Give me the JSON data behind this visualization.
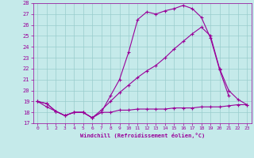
{
  "xlabel": "Windchill (Refroidissement éolien,°C)",
  "xlim": [
    -0.5,
    23.5
  ],
  "ylim": [
    17,
    28
  ],
  "xticks": [
    0,
    1,
    2,
    3,
    4,
    5,
    6,
    7,
    8,
    9,
    10,
    11,
    12,
    13,
    14,
    15,
    16,
    17,
    18,
    19,
    20,
    21,
    22,
    23
  ],
  "yticks": [
    17,
    18,
    19,
    20,
    21,
    22,
    23,
    24,
    25,
    26,
    27,
    28
  ],
  "background_color": "#c5eaea",
  "line_color": "#990099",
  "grid_color": "#99cccc",
  "series": [
    {
      "x": [
        0,
        1,
        2,
        3,
        4,
        5,
        6,
        7,
        8,
        9,
        10,
        11,
        12,
        13,
        14,
        15,
        16,
        17,
        18,
        19,
        20,
        21,
        22,
        23
      ],
      "y": [
        19.0,
        18.8,
        18.1,
        17.7,
        18.0,
        18.0,
        17.5,
        18.0,
        19.5,
        21.0,
        23.5,
        26.5,
        27.2,
        27.0,
        27.3,
        27.5,
        27.8,
        27.5,
        26.7,
        24.8,
        21.9,
        19.5,
        null,
        null
      ]
    },
    {
      "x": [
        0,
        1,
        2,
        3,
        4,
        5,
        6,
        7,
        8,
        9,
        10,
        11,
        12,
        13,
        14,
        15,
        16,
        17,
        18,
        19,
        20,
        21,
        22,
        23
      ],
      "y": [
        19.0,
        18.5,
        18.1,
        17.7,
        18.0,
        18.0,
        17.5,
        18.2,
        19.0,
        19.8,
        20.5,
        21.2,
        21.8,
        22.3,
        23.0,
        23.8,
        24.5,
        25.2,
        25.8,
        25.0,
        22.0,
        20.0,
        19.2,
        18.7
      ]
    },
    {
      "x": [
        0,
        1,
        2,
        3,
        4,
        5,
        6,
        7,
        8,
        9,
        10,
        11,
        12,
        13,
        14,
        15,
        16,
        17,
        18,
        19,
        20,
        21,
        22,
        23
      ],
      "y": [
        19.0,
        18.8,
        18.1,
        17.7,
        18.0,
        18.0,
        17.5,
        18.0,
        18.0,
        18.2,
        18.2,
        18.3,
        18.3,
        18.3,
        18.3,
        18.4,
        18.4,
        18.4,
        18.5,
        18.5,
        18.5,
        18.6,
        18.7,
        18.7
      ]
    }
  ]
}
